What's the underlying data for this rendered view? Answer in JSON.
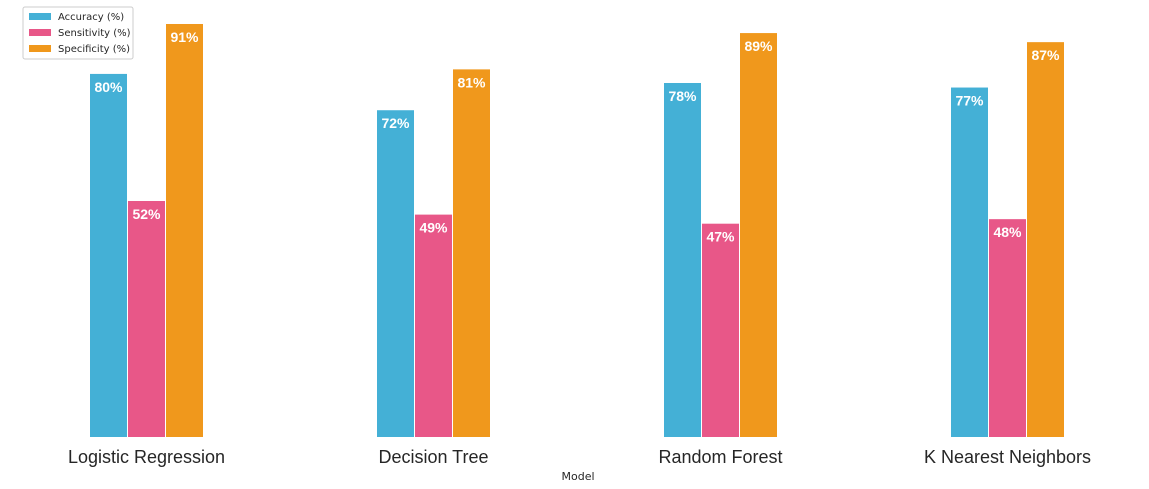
{
  "chart_data": {
    "type": "bar",
    "title": "",
    "xlabel": "Model",
    "ylabel": "",
    "ylim": [
      0,
      100
    ],
    "grid": false,
    "legend_position": "top-left",
    "categories": [
      "Logistic Regression",
      "Decision Tree",
      "Random Forest",
      "K Nearest Neighbors"
    ],
    "series": [
      {
        "name": "Accuracy (%)",
        "color": "#44b0d6",
        "values": [
          80,
          72,
          78,
          77
        ],
        "labels": [
          "80%",
          "72%",
          "78%",
          "77%"
        ]
      },
      {
        "name": "Sensitivity (%)",
        "color": "#e85788",
        "values": [
          52,
          49,
          47,
          48
        ],
        "labels": [
          "52%",
          "49%",
          "47%",
          "48%"
        ]
      },
      {
        "name": "Specificity (%)",
        "color": "#f0981c",
        "values": [
          91,
          81,
          89,
          87
        ],
        "labels": [
          "91%",
          "81%",
          "89%",
          "87%"
        ]
      }
    ]
  }
}
